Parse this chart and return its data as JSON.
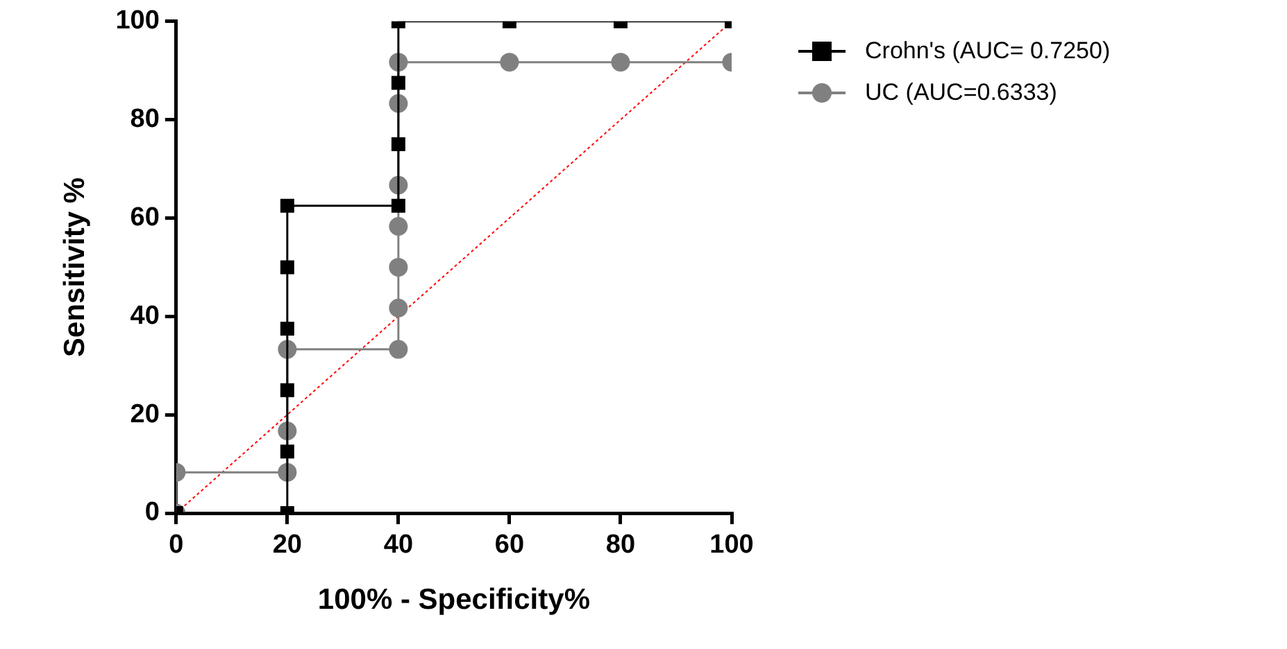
{
  "chart_data": {
    "type": "line",
    "xlabel": "100% - Specificity%",
    "ylabel": "Sensitivity %",
    "xlim": [
      0,
      100
    ],
    "xticks": [
      0,
      20,
      40,
      60,
      80,
      100
    ],
    "ylim": [
      0,
      100
    ],
    "yticks": [
      0,
      20,
      40,
      60,
      80,
      100
    ],
    "grid": false,
    "legend": "top right",
    "series": [
      {
        "name": "Crohn's (AUC= 0.7250)",
        "color": "#000000",
        "marker": "square",
        "x": [
          0,
          20,
          20,
          20,
          20,
          20,
          20,
          40,
          40,
          40,
          40,
          60,
          80,
          100
        ],
        "values": [
          0,
          0,
          12.5,
          25,
          37.5,
          50,
          62.5,
          62.5,
          75,
          87.5,
          100,
          100,
          100,
          100
        ]
      },
      {
        "name": "UC (AUC=0.6333)",
        "color": "#808080",
        "marker": "circle",
        "x": [
          0,
          0,
          20,
          20,
          20,
          40,
          40,
          40,
          40,
          40,
          40,
          40,
          60,
          80,
          100
        ],
        "values": [
          0,
          8.3,
          8.3,
          16.7,
          33.3,
          33.3,
          41.7,
          50,
          58.3,
          66.7,
          83.3,
          91.7,
          91.7,
          91.7,
          91.7
        ]
      },
      {
        "color": "#ff0000",
        "marker": "none",
        "line_style": "dotted",
        "x": [
          0,
          100
        ],
        "values": [
          0,
          100
        ]
      }
    ]
  }
}
